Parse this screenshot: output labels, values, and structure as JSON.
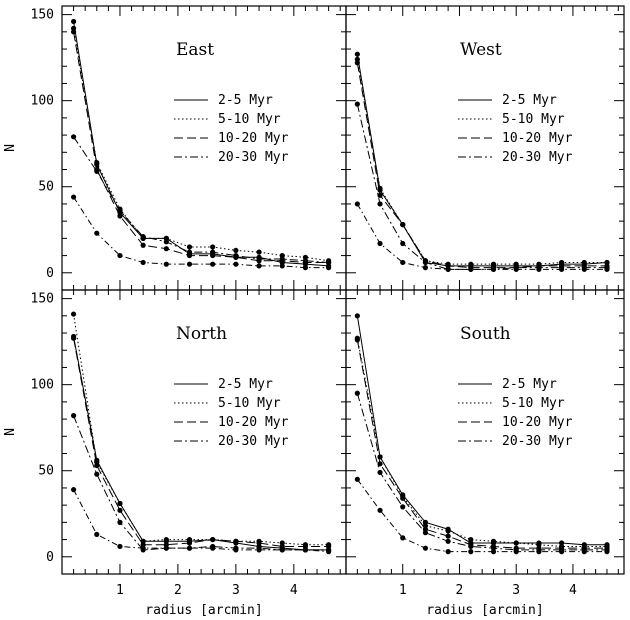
{
  "chart_data": [
    {
      "type": "line",
      "title": "East",
      "ylabel": "N",
      "x": [
        0.2,
        0.6,
        1.0,
        1.4,
        1.8,
        2.2,
        2.6,
        3.0,
        3.4,
        3.8,
        4.2,
        4.6
      ],
      "series": [
        {
          "name": "2-5 Myr",
          "values": [
            146,
            63,
            35,
            20,
            20,
            11,
            11,
            9,
            9,
            6,
            5,
            4
          ]
        },
        {
          "name": "5-10 Myr",
          "values": [
            142,
            64,
            37,
            20,
            20,
            15,
            15,
            13,
            12,
            10,
            9,
            7
          ]
        },
        {
          "name": "10-20 Myr",
          "values": [
            140,
            60,
            33,
            16,
            14,
            10,
            10,
            9,
            7,
            7,
            6,
            6
          ]
        },
        {
          "name": "20-30 Myr",
          "values": [
            79,
            59,
            36,
            21,
            18,
            12,
            12,
            10,
            8,
            8,
            7,
            6
          ]
        },
        {
          "name": "",
          "values": [
            44,
            23,
            10,
            6,
            5,
            5,
            5,
            5,
            4,
            4,
            3,
            3
          ]
        }
      ],
      "xlim": [
        0,
        4.9
      ],
      "ylim": [
        -10,
        155
      ]
    },
    {
      "type": "line",
      "title": "West",
      "x": [
        0.2,
        0.6,
        1.0,
        1.4,
        1.8,
        2.2,
        2.6,
        3.0,
        3.4,
        3.8,
        4.2,
        4.6
      ],
      "series": [
        {
          "name": "2-5 Myr",
          "values": [
            127,
            48,
            28,
            6,
            4,
            4,
            4,
            4,
            4,
            5,
            5,
            6
          ]
        },
        {
          "name": "5-10 Myr",
          "values": [
            124,
            49,
            28,
            7,
            5,
            5,
            5,
            5,
            5,
            6,
            6,
            6
          ]
        },
        {
          "name": "10-20 Myr",
          "values": [
            122,
            45,
            28,
            7,
            4,
            3,
            3,
            3,
            4,
            4,
            4,
            4
          ]
        },
        {
          "name": "20-30 Myr",
          "values": [
            98,
            40,
            17,
            6,
            2,
            2,
            2,
            3,
            3,
            3,
            3,
            3
          ]
        },
        {
          "name": "",
          "values": [
            40,
            17,
            6,
            3,
            2,
            2,
            2,
            2,
            2,
            2,
            2,
            2
          ]
        }
      ],
      "xlim": [
        0,
        4.9
      ],
      "ylim": [
        -10,
        155
      ]
    },
    {
      "type": "line",
      "title": "North",
      "xlabel": "radius [arcmin]",
      "ylabel": "N",
      "x": [
        0.2,
        0.6,
        1.0,
        1.4,
        1.8,
        2.2,
        2.6,
        3.0,
        3.4,
        3.8,
        4.2,
        4.6
      ],
      "series": [
        {
          "name": "2-5 Myr",
          "values": [
            128,
            56,
            31,
            9,
            9,
            9,
            10,
            8,
            6,
            5,
            4,
            4
          ]
        },
        {
          "name": "5-10 Myr",
          "values": [
            141,
            55,
            31,
            9,
            10,
            10,
            10,
            9,
            9,
            8,
            7,
            7
          ]
        },
        {
          "name": "10-20 Myr",
          "values": [
            127,
            53,
            27,
            7,
            7,
            8,
            10,
            9,
            8,
            6,
            6,
            6
          ]
        },
        {
          "name": "20-30 Myr",
          "values": [
            82,
            48,
            20,
            4,
            5,
            5,
            6,
            5,
            5,
            4,
            4,
            4
          ]
        },
        {
          "name": "",
          "values": [
            39,
            13,
            6,
            5,
            5,
            5,
            5,
            4,
            4,
            4,
            4,
            3
          ]
        }
      ],
      "xlim": [
        0,
        4.9
      ],
      "ylim": [
        -10,
        155
      ]
    },
    {
      "type": "line",
      "title": "South",
      "xlabel": "radius [arcmin]",
      "x": [
        0.2,
        0.6,
        1.0,
        1.4,
        1.8,
        2.2,
        2.6,
        3.0,
        3.4,
        3.8,
        4.2,
        4.6
      ],
      "series": [
        {
          "name": "2-5 Myr",
          "values": [
            140,
            58,
            36,
            20,
            16,
            8,
            8,
            8,
            8,
            8,
            7,
            7
          ]
        },
        {
          "name": "5-10 Myr",
          "values": [
            127,
            58,
            35,
            18,
            15,
            10,
            9,
            8,
            7,
            6,
            6,
            6
          ]
        },
        {
          "name": "10-20 Myr",
          "values": [
            126,
            54,
            34,
            16,
            12,
            7,
            6,
            5,
            5,
            5,
            5,
            5
          ]
        },
        {
          "name": "20-30 Myr",
          "values": [
            95,
            49,
            29,
            14,
            9,
            6,
            5,
            4,
            4,
            4,
            4,
            4
          ]
        },
        {
          "name": "",
          "values": [
            45,
            27,
            11,
            5,
            3,
            3,
            3,
            3,
            3,
            3,
            3,
            3
          ]
        }
      ],
      "xlim": [
        0,
        4.9
      ],
      "ylim": [
        -10,
        155
      ]
    }
  ],
  "axes": {
    "y_ticks": [
      "0",
      "50",
      "100",
      "150"
    ],
    "x_ticks": [
      "1",
      "2",
      "3",
      "4"
    ],
    "xlabel": "radius [arcmin]",
    "ylabel": "N"
  }
}
